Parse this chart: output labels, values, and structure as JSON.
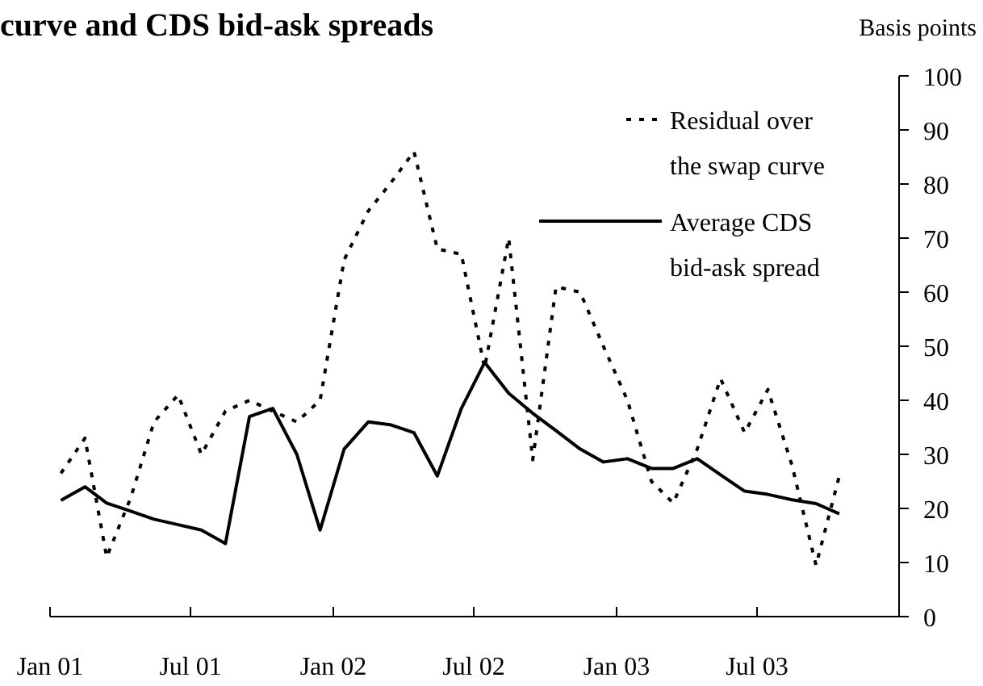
{
  "chart_data": {
    "type": "line",
    "title": "curve and CDS bid-ask spreads",
    "ylabel": "Basis points",
    "x": [
      "2001-01-15",
      "2001-02-15",
      "2001-03-15",
      "2001-04-15",
      "2001-05-15",
      "2001-06-15",
      "2001-07-15",
      "2001-08-15",
      "2001-09-15",
      "2001-10-15",
      "2001-11-15",
      "2001-12-15",
      "2002-01-15",
      "2002-02-15",
      "2002-03-15",
      "2002-04-15",
      "2002-05-15",
      "2002-06-15",
      "2002-07-15",
      "2002-08-15",
      "2002-09-15",
      "2002-10-15",
      "2002-11-15",
      "2002-12-15",
      "2003-01-15",
      "2003-02-15",
      "2003-03-15",
      "2003-04-15",
      "2003-05-15",
      "2003-06-15",
      "2003-07-15",
      "2003-08-15",
      "2003-09-15",
      "2003-10-15"
    ],
    "series": [
      {
        "name": "Residual over the swap curve",
        "color": "#000000",
        "line_style": "dotted",
        "values": [
          26.5,
          33,
          11,
          22,
          36,
          41,
          30,
          38,
          40,
          38,
          36,
          40,
          66,
          75,
          80,
          86,
          68,
          67,
          46,
          70,
          29,
          61,
          60,
          50,
          40,
          25,
          21,
          31,
          44,
          34,
          42,
          28,
          9.5,
          26
        ]
      },
      {
        "name": "Average CDS bid-ask spread",
        "color": "#000000",
        "line_style": "solid",
        "values": [
          21.5,
          24,
          21,
          19.5,
          18,
          17,
          16,
          13.5,
          37,
          38.5,
          30,
          16,
          31,
          36,
          35.5,
          34,
          26,
          38.5,
          47,
          41.3,
          37.6,
          34.4,
          31,
          28.6,
          29.2,
          27.4,
          27.4,
          29.2,
          26.2,
          23.2,
          22.6,
          21.6,
          20.9,
          19
        ]
      }
    ],
    "xlim": [
      "2001-01-01",
      "2003-12-31"
    ],
    "xticks": [
      {
        "value": "2001-01-01",
        "label": "Jan 01"
      },
      {
        "value": "2001-07-01",
        "label": "Jul 01"
      },
      {
        "value": "2002-01-01",
        "label": "Jan 02"
      },
      {
        "value": "2002-07-01",
        "label": "Jul 02"
      },
      {
        "value": "2003-01-01",
        "label": "Jan 03"
      },
      {
        "value": "2003-07-01",
        "label": "Jul 03"
      }
    ],
    "ylim": [
      0,
      100
    ],
    "yticks": [
      0,
      10,
      20,
      30,
      40,
      50,
      60,
      70,
      80,
      90,
      100
    ],
    "grid": false,
    "legend": "top right",
    "marker": "none"
  }
}
